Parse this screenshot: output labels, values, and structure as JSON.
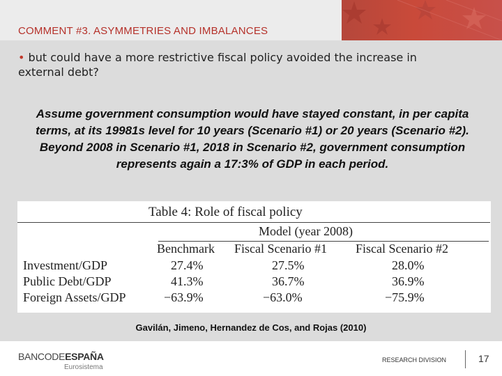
{
  "slide": {
    "title": "COMMENT #3. ASYMMETRIES AND IMBALANCES",
    "bullet_marker": "•",
    "bullet_text": "but could have a more restrictive fiscal policy avoided the increase in external debt?",
    "assumption_text": "Assume government consumption would have stayed constant, in per capita terms, at its 19981s level for 10 years (Scenario #1) or 20 years (Scenario #2). Beyond 2008 in Scenario #1, 2018 in Scenario #2, government consumption represents again a 17:3% of GDP in each period."
  },
  "table": {
    "caption": "Table 4:  Role of fiscal policy",
    "group_header": "Model  (year 2008)",
    "columns": [
      "Benchmark",
      "Fiscal Scenario #1",
      "Fiscal Scenario #2"
    ],
    "rows": [
      {
        "label": "Investment/GDP",
        "values": [
          "27.4%",
          "27.5%",
          "28.0%"
        ]
      },
      {
        "label": "Public Debt/GDP",
        "values": [
          "41.3%",
          "36.7%",
          "36.9%"
        ]
      },
      {
        "label": "Foreign Assets/GDP",
        "values": [
          "−63.9%",
          "−63.0%",
          "−75.9%"
        ]
      }
    ]
  },
  "source": "Gavilán, Jimeno, Hernandez de Cos, and Rojas (2010)",
  "footer": {
    "logo_part1": "BANCODE",
    "logo_part2": "ESPAÑA",
    "logo_sub": "Eurosistema",
    "division": "RESEARCH DIVISION",
    "page_number": "17"
  },
  "colors": {
    "title": "#b5312a",
    "banner": "#c94a3a",
    "background": "#dcdcdc"
  }
}
